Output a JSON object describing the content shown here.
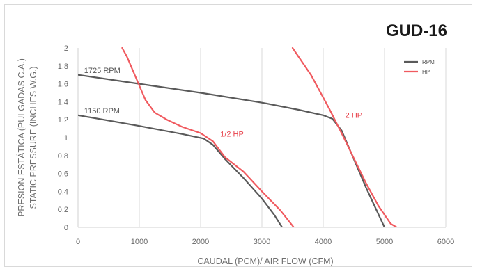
{
  "chart_data": {
    "type": "line",
    "title": "GUD-16",
    "xlabel": "CAUDAL (PCM)/ AIR FLOW (CFM)",
    "ylabel_lines": [
      "PRESION ESTÁTICA (PULGADAS C.A.)",
      "STATIC PRESSURE (INCHES W.G.)"
    ],
    "xlim": [
      0,
      6000
    ],
    "ylim": [
      0,
      2
    ],
    "x_ticks": [
      "0",
      "1000",
      "2000",
      "3000",
      "4000",
      "5000",
      "6000"
    ],
    "y_ticks": [
      "0",
      "0.2",
      "0.4",
      "0.6",
      "0.8",
      "1",
      "1.2",
      "1.4",
      "1.6",
      "1.8",
      "2"
    ],
    "grid": "vertical",
    "legend": {
      "position": "top-right",
      "entries": [
        {
          "name": "RPM",
          "color": "#5a5a5a"
        },
        {
          "name": "HP",
          "color": "#f05a5f"
        }
      ]
    },
    "series": [
      {
        "name": "1725 RPM",
        "group": "RPM",
        "color": "#5a5a5a",
        "points": [
          [
            0,
            1.7
          ],
          [
            1000,
            1.6
          ],
          [
            2000,
            1.5
          ],
          [
            3000,
            1.39
          ],
          [
            3600,
            1.31
          ],
          [
            4000,
            1.25
          ],
          [
            4150,
            1.21
          ],
          [
            4300,
            1.08
          ],
          [
            4500,
            0.76
          ],
          [
            4700,
            0.44
          ],
          [
            4850,
            0.22
          ],
          [
            5000,
            0.0
          ]
        ]
      },
      {
        "name": "1150 RPM",
        "group": "RPM",
        "color": "#5a5a5a",
        "points": [
          [
            0,
            1.25
          ],
          [
            1000,
            1.13
          ],
          [
            1700,
            1.04
          ],
          [
            2050,
            0.99
          ],
          [
            2200,
            0.92
          ],
          [
            2400,
            0.76
          ],
          [
            2700,
            0.55
          ],
          [
            3000,
            0.32
          ],
          [
            3200,
            0.14
          ],
          [
            3330,
            0.0
          ]
        ]
      },
      {
        "name": "1/2 HP",
        "group": "HP",
        "color": "#f05a5f",
        "points": [
          [
            720,
            2.0
          ],
          [
            800,
            1.9
          ],
          [
            900,
            1.74
          ],
          [
            1000,
            1.58
          ],
          [
            1100,
            1.42
          ],
          [
            1250,
            1.28
          ],
          [
            1450,
            1.2
          ],
          [
            1700,
            1.12
          ],
          [
            2000,
            1.05
          ],
          [
            2200,
            0.96
          ],
          [
            2400,
            0.78
          ],
          [
            2700,
            0.62
          ],
          [
            3000,
            0.4
          ],
          [
            3300,
            0.19
          ],
          [
            3520,
            0.0
          ]
        ]
      },
      {
        "name": "2 HP",
        "group": "HP",
        "color": "#f05a5f",
        "points": [
          [
            3500,
            2.0
          ],
          [
            3800,
            1.7
          ],
          [
            4100,
            1.32
          ],
          [
            4300,
            1.05
          ],
          [
            4500,
            0.77
          ],
          [
            4700,
            0.49
          ],
          [
            4900,
            0.24
          ],
          [
            5100,
            0.04
          ],
          [
            5200,
            0.0
          ]
        ]
      }
    ],
    "annotations": [
      {
        "text": "1725 RPM",
        "x": 100,
        "y": 1.72,
        "kind": "rpm"
      },
      {
        "text": "1150 RPM",
        "x": 100,
        "y": 1.27,
        "kind": "rpm"
      },
      {
        "text": "1/2 HP",
        "x": 2320,
        "y": 1.01,
        "kind": "hp"
      },
      {
        "text": "2 HP",
        "x": 4360,
        "y": 1.22,
        "kind": "hp"
      }
    ]
  }
}
